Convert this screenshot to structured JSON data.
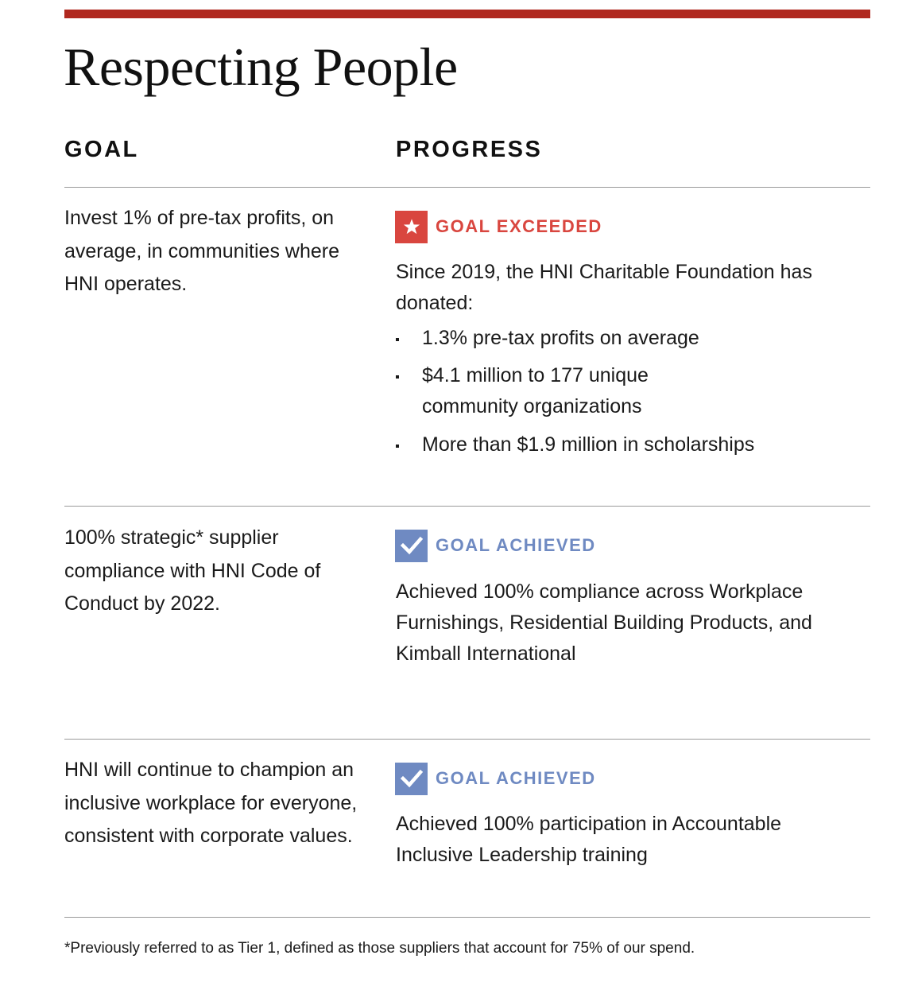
{
  "colors": {
    "accent_red": "#b0281f",
    "exceeded_red": "#d9463f",
    "achieved_blue": "#6f8ac2",
    "rule_gray": "#9a9a9a"
  },
  "title": "Respecting People",
  "headers": {
    "goal": "GOAL",
    "progress": "PROGRESS"
  },
  "rows": [
    {
      "goal": "Invest 1% of pre-tax profits, on average, in communities where HNI operates.",
      "status_icon": "star-icon",
      "status_label": "GOAL EXCEEDED",
      "progress": "Since 2019, the HNI Charitable Foundation has donated:",
      "bullets": [
        "1.3% pre-tax profits on average",
        "$4.1 million to 177 unique community organizations",
        "More than $1.9 million in scholarships"
      ]
    },
    {
      "goal": "100% strategic* supplier compliance with HNI Code of Conduct by 2022.",
      "status_icon": "checkmark-icon",
      "status_label": "GOAL ACHIEVED",
      "progress": "Achieved 100% compliance across Workplace Furnishings, Residential Building Products, and Kimball International"
    },
    {
      "goal": "HNI will continue to champion an inclusive workplace for everyone, consistent with corporate values.",
      "status_icon": "checkmark-icon",
      "status_label": "GOAL ACHIEVED",
      "progress": "Achieved 100% participation in Accountable Inclusive Leadership training"
    }
  ],
  "footnote": "*Previously referred to as Tier 1, defined as those suppliers that account for 75% of our spend."
}
